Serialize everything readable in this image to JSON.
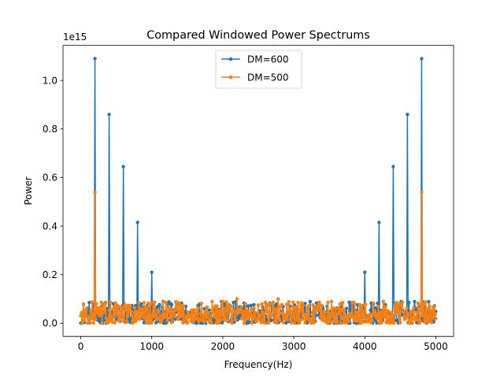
{
  "chart_data": {
    "type": "line",
    "title": "Compared Windowed Power Spectrums",
    "xlabel": "Frequency(Hz)",
    "ylabel": "Power",
    "y_multiplier_label": "1e15",
    "xlim": [
      -250,
      5250
    ],
    "ylim": [
      -0.0545,
      1.1445
    ],
    "x_ticks": [
      0,
      1000,
      2000,
      3000,
      4000,
      5000
    ],
    "x_tick_labels": [
      "0",
      "1000",
      "2000",
      "3000",
      "4000",
      "5000"
    ],
    "y_ticks": [
      0.0,
      0.2,
      0.4,
      0.6,
      0.8,
      1.0
    ],
    "y_tick_labels": [
      "0.0",
      "0.2",
      "0.4",
      "0.6",
      "0.8",
      "1.0"
    ],
    "legend_position": "upper-center",
    "grid": false,
    "series": [
      {
        "name": "DM=600",
        "color": "#1f77b4",
        "peaks": [
          {
            "x": 200,
            "y": 1.09
          },
          {
            "x": 400,
            "y": 0.86
          },
          {
            "x": 600,
            "y": 0.645
          },
          {
            "x": 800,
            "y": 0.415
          },
          {
            "x": 1000,
            "y": 0.21
          },
          {
            "x": 4000,
            "y": 0.21
          },
          {
            "x": 4200,
            "y": 0.415
          },
          {
            "x": 4400,
            "y": 0.645
          },
          {
            "x": 4600,
            "y": 0.86
          },
          {
            "x": 4800,
            "y": 1.09
          }
        ],
        "noise": {
          "x_start": 0,
          "x_end": 5000,
          "step": 10,
          "min": 0.0,
          "max": 0.09
        }
      },
      {
        "name": "DM=500",
        "color": "#ff7f0e",
        "peaks": [
          {
            "x": 200,
            "y": 0.54
          },
          {
            "x": 4800,
            "y": 0.54
          },
          {
            "x": 2200,
            "y": 0.1
          },
          {
            "x": 2780,
            "y": 0.1
          }
        ],
        "noise": {
          "x_start": 0,
          "x_end": 5000,
          "step": 10,
          "min": 0.0,
          "max": 0.09
        }
      }
    ]
  }
}
